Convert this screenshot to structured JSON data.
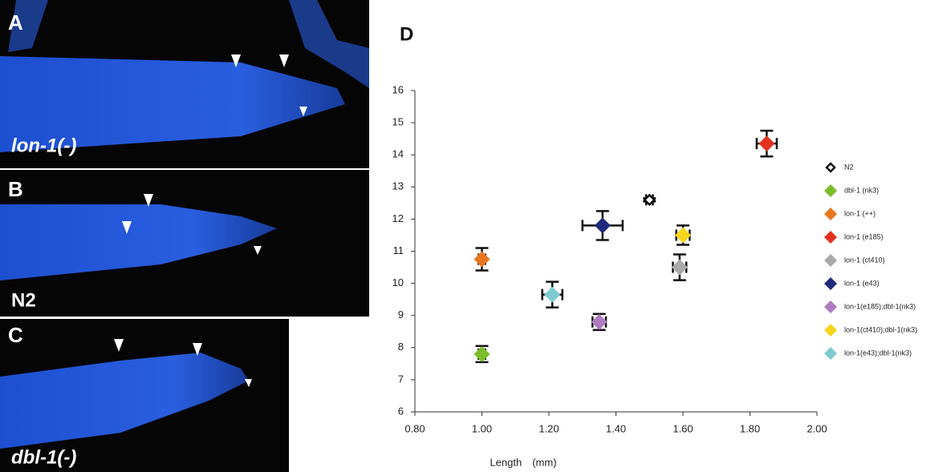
{
  "panels": [
    {
      "label": "A",
      "caption": "lon-1(-)"
    },
    {
      "label": "B",
      "caption": "N2"
    },
    {
      "label": "C",
      "caption": "dbl-1(-)"
    }
  ],
  "chart_data": {
    "type": "scatter",
    "title": "D",
    "x_label": "Length　(mm)",
    "marker": "diamond",
    "xlim": [
      0.8,
      2.0
    ],
    "xticks": [
      {
        "value": 0.8,
        "label": "0.80"
      },
      {
        "value": 1,
        "label": "1.00"
      },
      {
        "value": 1.2,
        "label": "1.20"
      },
      {
        "value": 1.4,
        "label": "1.40"
      },
      {
        "value": 1.6,
        "label": "1.60"
      },
      {
        "value": 1.8,
        "label": "1.80"
      },
      {
        "value": 2,
        "label": "2.00"
      }
    ],
    "ylim": [
      6,
      16
    ],
    "yticks": [
      6,
      7,
      8,
      9,
      10,
      11,
      12,
      13,
      14,
      15,
      16
    ],
    "series": [
      {
        "name": "N2",
        "color": "#ffffff",
        "x": [
          1.5
        ],
        "values": [
          12.6
        ],
        "xerr": [
          0.01
        ],
        "yerr": [
          0.05
        ]
      },
      {
        "name": "dbl-1 (nk3)",
        "color": "#7cbd2a",
        "x": [
          1.0
        ],
        "values": [
          7.8
        ],
        "xerr": [
          0.01
        ],
        "yerr": [
          0.25
        ]
      },
      {
        "name": "lon-1 (++)",
        "color": "#e9761f",
        "x": [
          1.0
        ],
        "values": [
          10.75
        ],
        "xerr": [
          0.01
        ],
        "yerr": [
          0.35
        ]
      },
      {
        "name": "lon-1 (e185)",
        "color": "#e2321f",
        "x": [
          1.85
        ],
        "values": [
          14.35
        ],
        "xerr": [
          0.03
        ],
        "yerr": [
          0.4
        ]
      },
      {
        "name": "lon-1 (ct410)",
        "color": "#a9a9a9",
        "x": [
          1.59
        ],
        "values": [
          10.5
        ],
        "xerr": [
          0.02
        ],
        "yerr": [
          0.4
        ]
      },
      {
        "name": "lon-1 (e43)",
        "color": "#1f2a7a",
        "x": [
          1.36
        ],
        "values": [
          11.8
        ],
        "xerr": [
          0.06
        ],
        "yerr": [
          0.45
        ]
      },
      {
        "name": "lon-1(e185);dbl-1(nk3)",
        "color": "#b07cc0",
        "x": [
          1.35
        ],
        "values": [
          8.8
        ],
        "xerr": [
          0.02
        ],
        "yerr": [
          0.25
        ]
      },
      {
        "name": "lon-1(ct410);dbl-1(nk3)",
        "color": "#f7d51b",
        "x": [
          1.6
        ],
        "values": [
          11.5
        ],
        "xerr": [
          0.02
        ],
        "yerr": [
          0.3
        ]
      },
      {
        "name": "lon-1(e43);dbl-1(nk3)",
        "color": "#7ecbd2",
        "x": [
          1.21
        ],
        "values": [
          9.65
        ],
        "xerr": [
          0.03
        ],
        "yerr": [
          0.4
        ]
      }
    ]
  }
}
